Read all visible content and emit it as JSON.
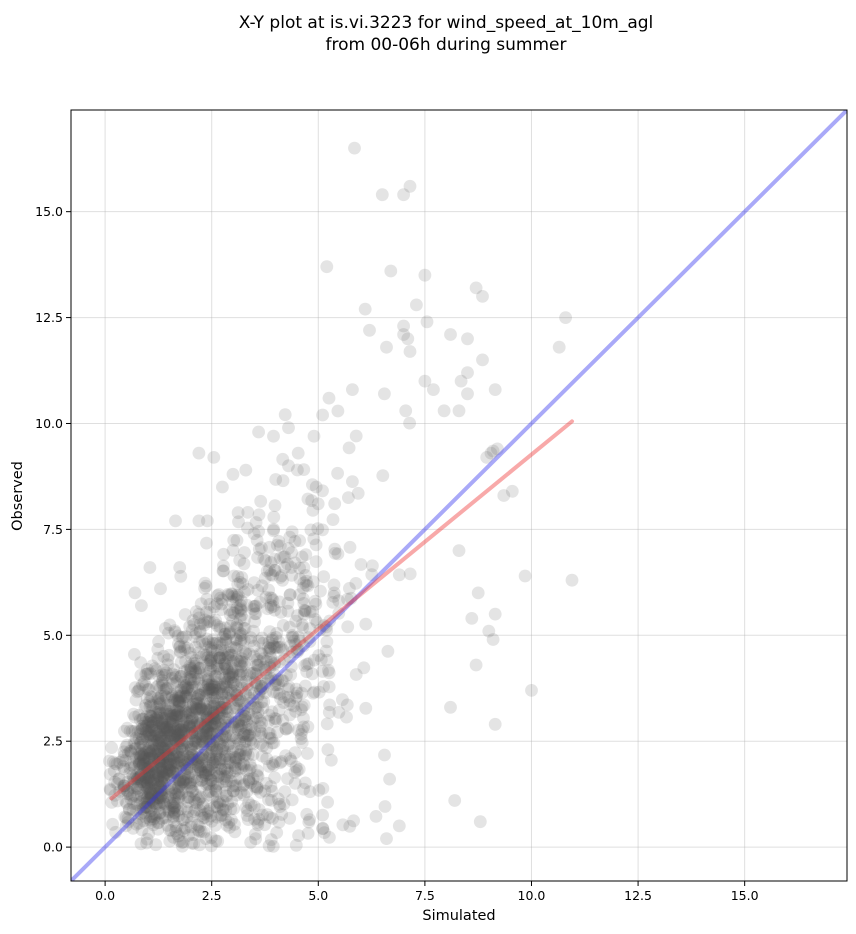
{
  "chart_data": {
    "type": "scatter",
    "title": [
      "X-Y plot at is.vi.3223 for wind_speed_at_10m_agl",
      "from 00-06h during summer"
    ],
    "xlabel": "Simulated",
    "ylabel": "Observed",
    "xlim": [
      -0.8,
      17.4
    ],
    "ylim": [
      -0.8,
      17.4
    ],
    "xticks": [
      "0.0",
      "2.5",
      "5.0",
      "7.5",
      "10.0",
      "12.5",
      "15.0"
    ],
    "yticks": [
      "0.0",
      "2.5",
      "5.0",
      "7.5",
      "10.0",
      "12.5",
      "15.0"
    ],
    "grid": true,
    "point_color": "#555555",
    "identity_line": {
      "from": [
        -0.8,
        -0.8
      ],
      "to": [
        17.4,
        17.4
      ],
      "color": "#3333ee"
    },
    "regression_line": {
      "from": [
        0.15,
        1.15
      ],
      "to": [
        10.95,
        10.05
      ],
      "color": "#ee3333"
    },
    "outlier_points": [
      [
        5.85,
        16.5
      ],
      [
        7.15,
        15.6
      ],
      [
        6.5,
        15.4
      ],
      [
        7.0,
        15.4
      ],
      [
        5.2,
        13.7
      ],
      [
        6.7,
        13.6
      ],
      [
        7.5,
        13.5
      ],
      [
        8.7,
        13.2
      ],
      [
        8.85,
        13.0
      ],
      [
        7.3,
        12.8
      ],
      [
        7.55,
        12.4
      ],
      [
        6.1,
        12.7
      ],
      [
        7.0,
        12.3
      ],
      [
        7.1,
        12.0
      ],
      [
        8.5,
        12.0
      ],
      [
        7.0,
        12.1
      ],
      [
        8.1,
        12.1
      ],
      [
        6.2,
        12.2
      ],
      [
        6.6,
        11.8
      ],
      [
        7.15,
        11.7
      ],
      [
        8.85,
        11.5
      ],
      [
        10.8,
        12.5
      ],
      [
        10.65,
        11.8
      ],
      [
        8.35,
        11.0
      ],
      [
        7.5,
        11.0
      ],
      [
        8.5,
        11.2
      ],
      [
        9.15,
        10.8
      ],
      [
        7.7,
        10.8
      ],
      [
        5.8,
        10.8
      ],
      [
        6.55,
        10.7
      ],
      [
        5.25,
        10.6
      ],
      [
        8.5,
        10.7
      ],
      [
        7.05,
        10.3
      ],
      [
        5.1,
        10.2
      ],
      [
        7.95,
        10.3
      ],
      [
        8.3,
        10.3
      ],
      [
        9.55,
        8.4
      ],
      [
        9.35,
        8.3
      ],
      [
        8.95,
        9.2
      ],
      [
        9.05,
        9.3
      ],
      [
        9.1,
        9.35
      ],
      [
        10.95,
        6.3
      ],
      [
        9.85,
        6.4
      ],
      [
        10.0,
        3.7
      ],
      [
        9.15,
        5.5
      ],
      [
        9.1,
        4.9
      ],
      [
        9.0,
        5.1
      ],
      [
        9.15,
        2.9
      ],
      [
        8.8,
        0.6
      ],
      [
        8.2,
        1.1
      ],
      [
        6.9,
        0.5
      ],
      [
        6.6,
        0.2
      ],
      [
        8.7,
        4.3
      ],
      [
        8.1,
        3.3
      ],
      [
        8.75,
        6.0
      ],
      [
        8.6,
        5.4
      ],
      [
        9.2,
        9.4
      ],
      [
        8.3,
        7.0
      ],
      [
        2.2,
        9.3
      ],
      [
        2.55,
        9.2
      ],
      [
        3.6,
        9.8
      ],
      [
        3.3,
        8.9
      ],
      [
        2.75,
        8.5
      ],
      [
        2.2,
        7.7
      ],
      [
        1.65,
        7.7
      ],
      [
        1.3,
        6.1
      ],
      [
        1.05,
        6.6
      ],
      [
        0.7,
        6.0
      ],
      [
        0.85,
        5.7
      ],
      [
        1.75,
        6.6
      ],
      [
        4.3,
        9.9
      ],
      [
        3.95,
        9.7
      ],
      [
        4.3,
        9.0
      ],
      [
        4.9,
        9.7
      ],
      [
        4.95,
        8.5
      ],
      [
        3.0,
        8.8
      ],
      [
        2.4,
        7.7
      ]
    ],
    "dense_cloud": {
      "n": 2100,
      "x_center": 2.7,
      "slope": 0.7,
      "intercept": 1.3,
      "x_min": 0.1,
      "x_max": 8.3
    }
  }
}
